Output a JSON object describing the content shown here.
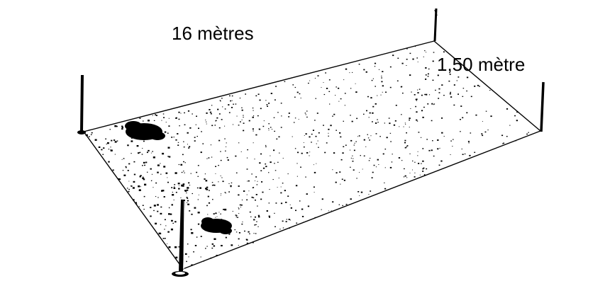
{
  "labels": {
    "length": "16 mètres",
    "width": "1,50 mètre"
  },
  "colors": {
    "ink": "#000000",
    "background": "#ffffff"
  }
}
